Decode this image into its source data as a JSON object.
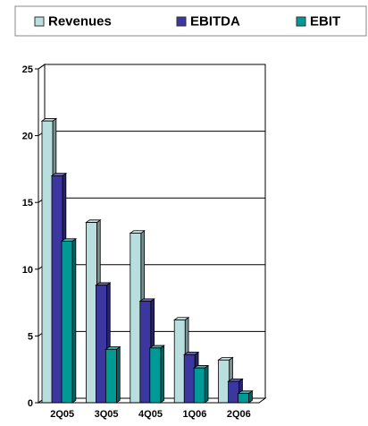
{
  "chart_data": {
    "type": "bar",
    "title": "",
    "xlabel": "",
    "ylabel": "",
    "categories": [
      "2Q05",
      "3Q05",
      "4Q05",
      "1Q06",
      "2Q06"
    ],
    "series": [
      {
        "name": "Revenues",
        "values": [
          21.1,
          13.5,
          12.7,
          6.2,
          3.2
        ],
        "color": "#b9dede"
      },
      {
        "name": "EBITDA",
        "values": [
          17.0,
          8.8,
          7.6,
          3.6,
          1.6
        ],
        "color": "#3b36a0"
      },
      {
        "name": "EBIT",
        "values": [
          12.1,
          4.0,
          4.1,
          2.6,
          0.7
        ],
        "color": "#009a96"
      }
    ],
    "ylim": [
      0,
      25
    ],
    "yticks": [
      0,
      5,
      10,
      15,
      20,
      25
    ],
    "grid": true,
    "legend_position": "top",
    "style": "3d-bar"
  }
}
